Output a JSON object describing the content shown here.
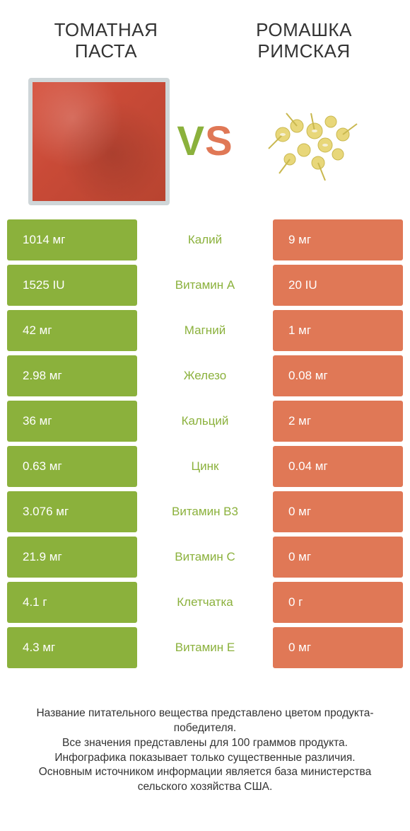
{
  "header": {
    "left_title": "ТОМАТНАЯ ПАСТА",
    "right_title": "РОМАШКА РИМСКАЯ",
    "vs_v": "V",
    "vs_s": "S"
  },
  "colors": {
    "left_cell_bg": "#8bb13c",
    "right_cell_bg": "#e07856",
    "left_label": "#8bb13c",
    "right_label": "#e07856",
    "text": "#333333",
    "background": "#ffffff"
  },
  "table": {
    "rows": [
      {
        "left": "1014 мг",
        "label": "Калий",
        "right": "9 мг",
        "winner": "left"
      },
      {
        "left": "1525 IU",
        "label": "Витамин A",
        "right": "20 IU",
        "winner": "left"
      },
      {
        "left": "42 мг",
        "label": "Магний",
        "right": "1 мг",
        "winner": "left"
      },
      {
        "left": "2.98 мг",
        "label": "Железо",
        "right": "0.08 мг",
        "winner": "left"
      },
      {
        "left": "36 мг",
        "label": "Кальций",
        "right": "2 мг",
        "winner": "left"
      },
      {
        "left": "0.63 мг",
        "label": "Цинк",
        "right": "0.04 мг",
        "winner": "left"
      },
      {
        "left": "3.076 мг",
        "label": "Витамин B3",
        "right": "0 мг",
        "winner": "left"
      },
      {
        "left": "21.9 мг",
        "label": "Витамин C",
        "right": "0 мг",
        "winner": "left"
      },
      {
        "left": "4.1 г",
        "label": "Клетчатка",
        "right": "0 г",
        "winner": "left"
      },
      {
        "left": "4.3 мг",
        "label": "Витамин E",
        "right": "0 мг",
        "winner": "left"
      }
    ]
  },
  "footnote": {
    "line1": "Название питательного вещества представлено цветом продукта-победителя.",
    "line2": "Все значения представлены для 100 граммов продукта.",
    "line3": "Инфографика показывает только существенные различия.",
    "line4": "Основным источником информации является база министерства сельского хозяйства США."
  },
  "typography": {
    "title_fontsize": 26,
    "cell_fontsize": 17,
    "footnote_fontsize": 15.5,
    "vs_fontsize": 58
  }
}
